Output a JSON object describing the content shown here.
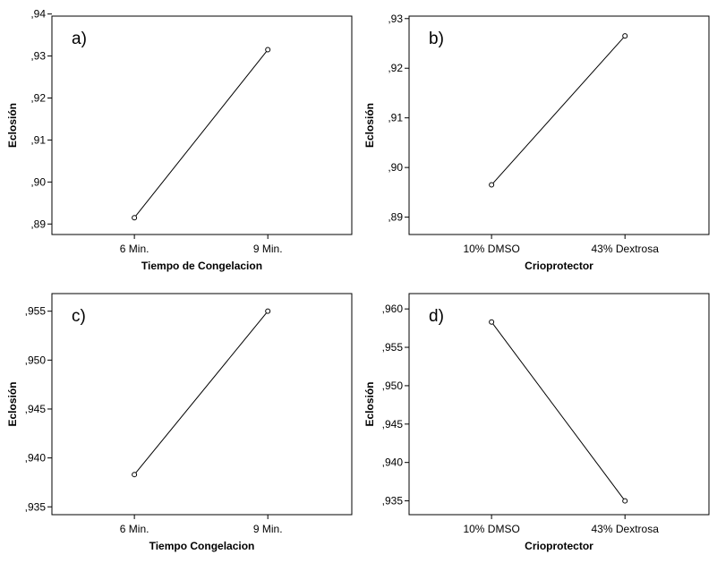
{
  "chart_data": [
    {
      "type": "line",
      "panel_label": "a)",
      "categories": [
        "6 Min.",
        "9 Min."
      ],
      "values": [
        0.8915,
        0.9315
      ],
      "xlabel": "Tiempo de Congelacion",
      "ylabel": "Eclosión",
      "ylim": [
        0.8875,
        0.9395
      ],
      "yticks": [
        0.89,
        0.9,
        0.91,
        0.92,
        0.93,
        0.94
      ],
      "ytick_labels": [
        ",89",
        ",90",
        ",91",
        ",92",
        ",93",
        ",94"
      ],
      "grid": false,
      "marker": "hollow-circle"
    },
    {
      "type": "line",
      "panel_label": "b)",
      "categories": [
        "10% DMSO",
        "43% Dextrosa"
      ],
      "values": [
        0.8965,
        0.9265
      ],
      "xlabel": "Crioprotector",
      "ylabel": "Eclosión",
      "ylim": [
        0.8865,
        0.9305
      ],
      "yticks": [
        0.89,
        0.9,
        0.91,
        0.92,
        0.93
      ],
      "ytick_labels": [
        ",89",
        ",90",
        ",91",
        ",92",
        ",93"
      ],
      "grid": false,
      "marker": "hollow-circle"
    },
    {
      "type": "line",
      "panel_label": "c)",
      "categories": [
        "6 Min.",
        "9 Min."
      ],
      "values": [
        0.9383,
        0.955
      ],
      "xlabel": "Tiempo Congelacion",
      "ylabel": "Eclosión",
      "ylim": [
        0.9342,
        0.9568
      ],
      "yticks": [
        0.935,
        0.94,
        0.945,
        0.95,
        0.955
      ],
      "ytick_labels": [
        ",935",
        ",940",
        ",945",
        ",950",
        ",955"
      ],
      "grid": false,
      "marker": "hollow-circle"
    },
    {
      "type": "line",
      "panel_label": "d)",
      "categories": [
        "10% DMSO",
        "43% Dextrosa"
      ],
      "values": [
        0.9583,
        0.935
      ],
      "xlabel": "Crioprotector",
      "ylabel": "Eclosión",
      "ylim": [
        0.9332,
        0.962
      ],
      "yticks": [
        0.935,
        0.94,
        0.945,
        0.95,
        0.955,
        0.96
      ],
      "ytick_labels": [
        ",935",
        ",940",
        ",945",
        ",950",
        ",955",
        ",960"
      ],
      "grid": false,
      "marker": "hollow-circle"
    }
  ]
}
